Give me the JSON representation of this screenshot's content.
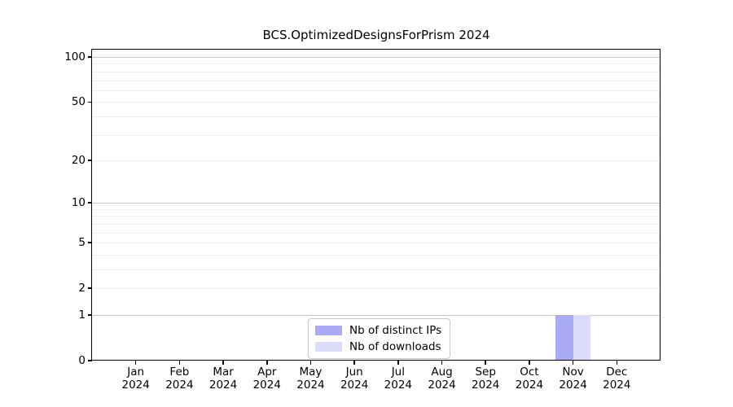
{
  "title": "BCS.OptimizedDesignsForPrism 2024",
  "legend": {
    "items": [
      {
        "label": "Nb of distinct IPs",
        "color": "#aaaaf5"
      },
      {
        "label": "Nb of downloads",
        "color": "#dbdbfa"
      }
    ]
  },
  "colors": {
    "distinct_ips_bar": "#aaaaf5",
    "downloads_bar": "#dbdbfa",
    "major_gridline": "#c6c6c6",
    "minor_gridline": "#ededed",
    "axis": "#000000"
  },
  "chart_data": {
    "type": "bar",
    "title": "BCS.OptimizedDesignsForPrism 2024",
    "categories": [
      {
        "month": "Jan",
        "year": "2024"
      },
      {
        "month": "Feb",
        "year": "2024"
      },
      {
        "month": "Mar",
        "year": "2024"
      },
      {
        "month": "Apr",
        "year": "2024"
      },
      {
        "month": "May",
        "year": "2024"
      },
      {
        "month": "Jun",
        "year": "2024"
      },
      {
        "month": "Jul",
        "year": "2024"
      },
      {
        "month": "Aug",
        "year": "2024"
      },
      {
        "month": "Sep",
        "year": "2024"
      },
      {
        "month": "Oct",
        "year": "2024"
      },
      {
        "month": "Nov",
        "year": "2024"
      },
      {
        "month": "Dec",
        "year": "2024"
      }
    ],
    "series": [
      {
        "name": "Nb of distinct IPs",
        "color": "#aaaaf5",
        "values": [
          0,
          0,
          0,
          0,
          0,
          0,
          0,
          0,
          0,
          0,
          1,
          0
        ]
      },
      {
        "name": "Nb of downloads",
        "color": "#dbdbfa",
        "values": [
          0,
          0,
          0,
          0,
          0,
          0,
          0,
          0,
          0,
          0,
          1,
          0
        ]
      }
    ],
    "xlabel": "",
    "ylabel": "",
    "yscale": "log1p",
    "ylim": [
      0,
      112
    ],
    "yticks": [
      0,
      1,
      2,
      5,
      10,
      20,
      50,
      100
    ],
    "major_gridlines": [
      1,
      10,
      100
    ],
    "minor_gridlines": [
      2,
      3,
      4,
      5,
      6,
      7,
      8,
      9,
      20,
      30,
      40,
      50,
      60,
      70,
      80,
      90,
      110
    ],
    "grid": true,
    "legend_position": "lower center",
    "bar_width_fraction": 0.4
  }
}
